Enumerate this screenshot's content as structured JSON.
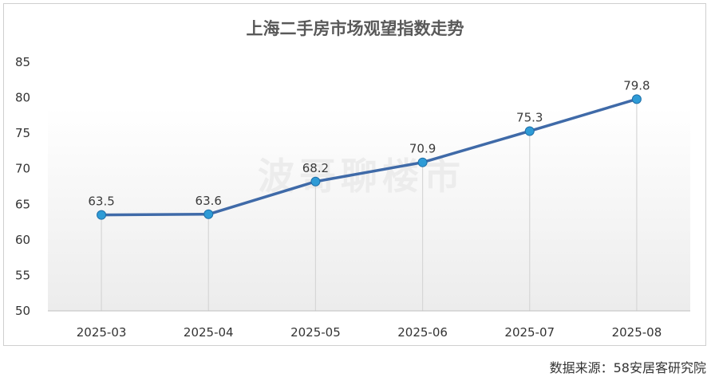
{
  "chart_data": {
    "type": "line",
    "title": "上海二手房市场观望指数走势",
    "categories": [
      "2025-03",
      "2025-04",
      "2025-05",
      "2025-06",
      "2025-07",
      "2025-08"
    ],
    "series": [
      {
        "values": [
          63.5,
          63.6,
          68.2,
          70.9,
          75.3,
          79.8
        ]
      }
    ],
    "data_labels": [
      "63.5",
      "63.6",
      "68.2",
      "70.9",
      "75.3",
      "79.8"
    ],
    "y_ticks": [
      "85",
      "80",
      "75",
      "70",
      "65",
      "60",
      "55",
      "50"
    ],
    "ylim": [
      50,
      85
    ],
    "xlabel": "",
    "ylabel": "",
    "grid": "vertical drop lines",
    "line_color": "#3f6aa8",
    "marker_color": "#2e9bd6"
  },
  "watermark": "波哥聊楼市",
  "source": "数据来源：58安居客研究院"
}
